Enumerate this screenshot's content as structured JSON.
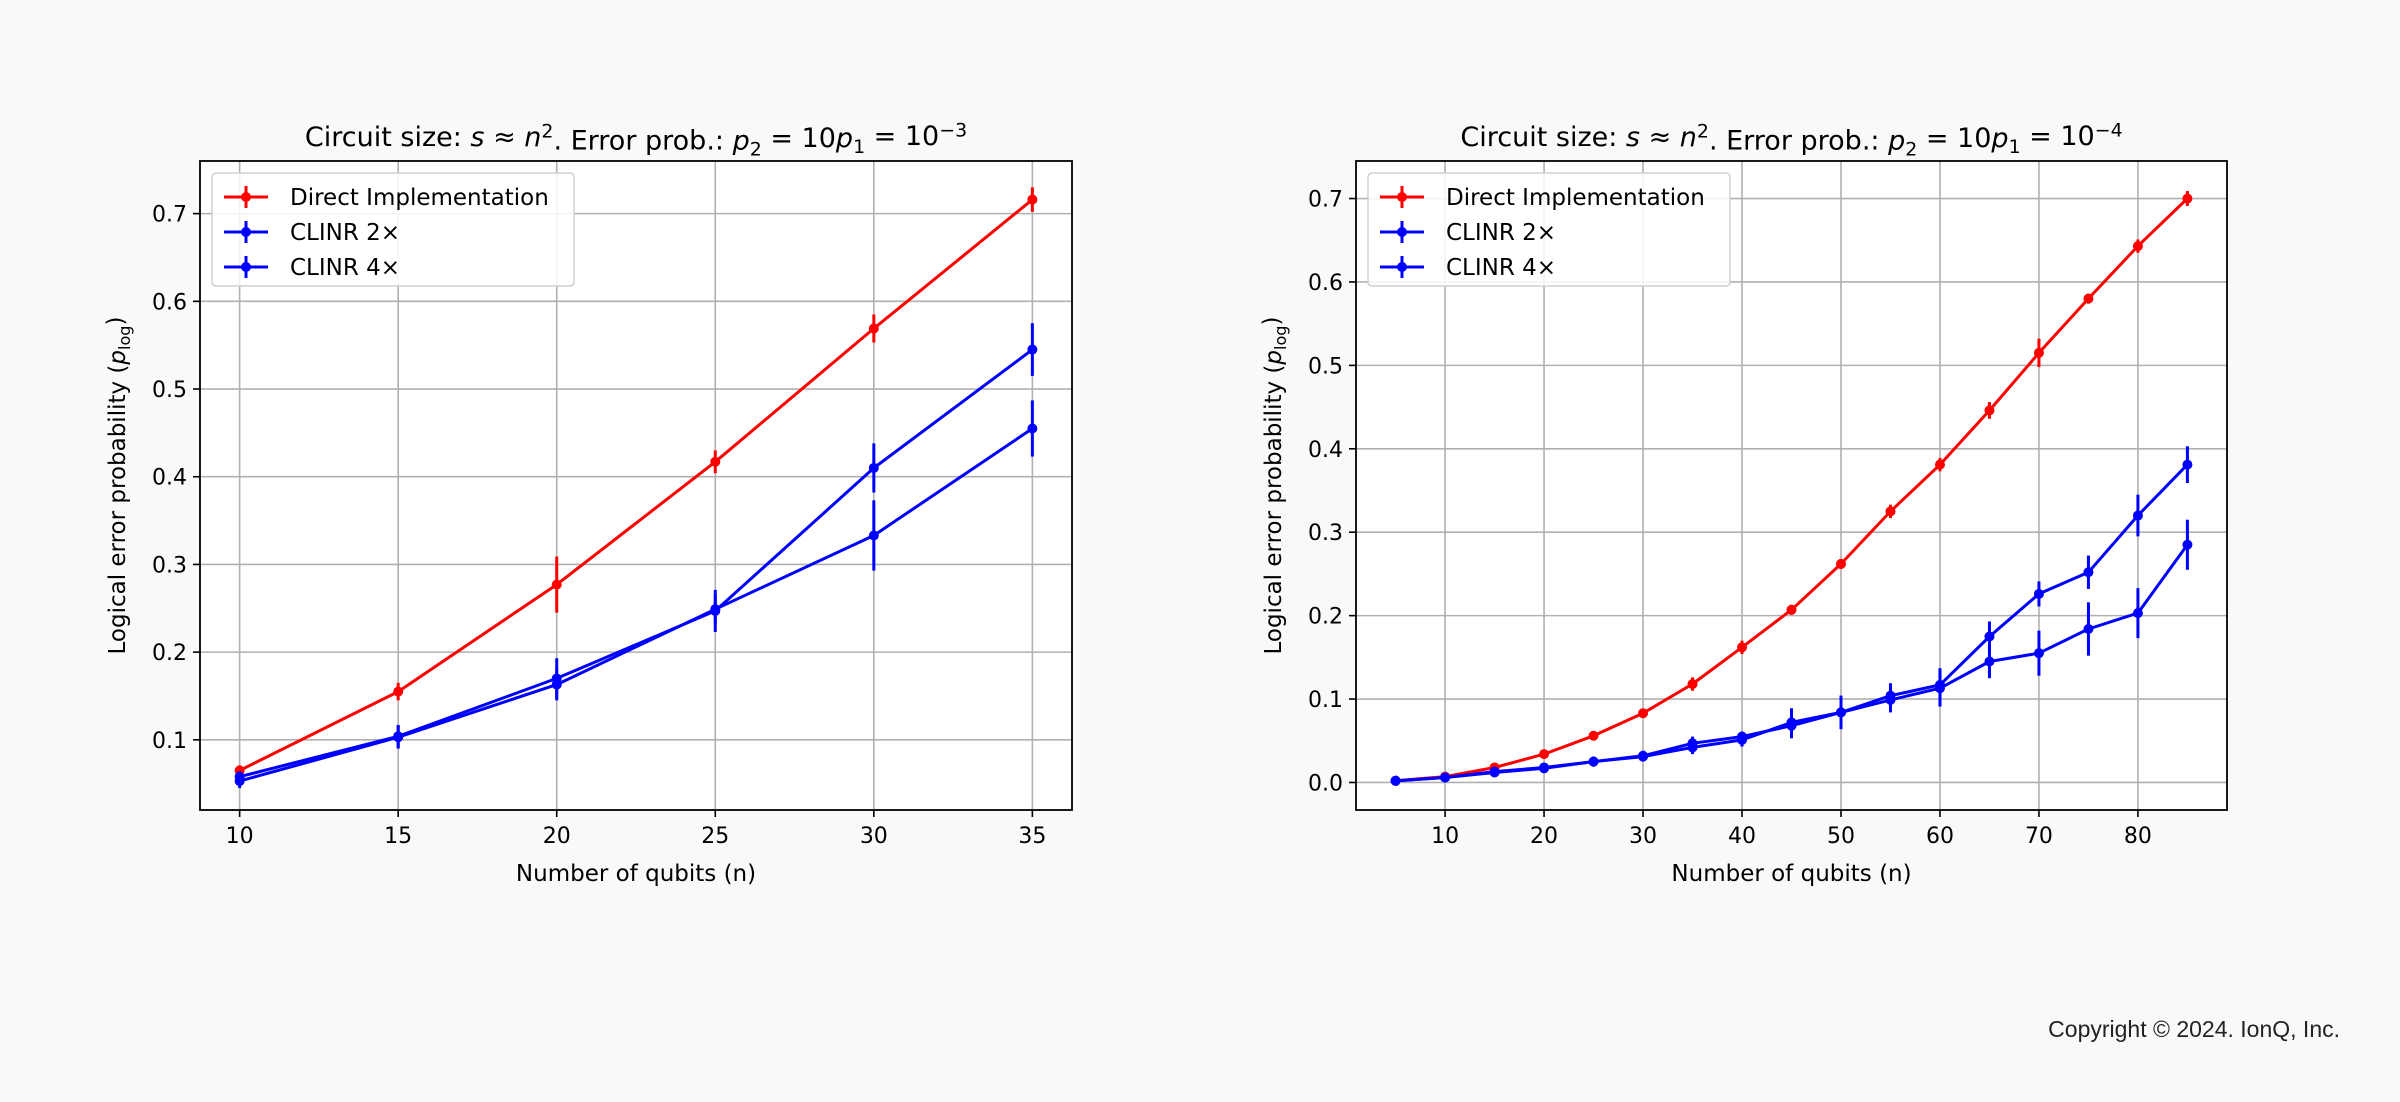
{
  "copyright": "Copyright © 2024. IonQ, Inc.",
  "chart_data": [
    {
      "type": "line",
      "title_parts": [
        {
          "t": "Circuit size: "
        },
        {
          "t": "s",
          "it": true
        },
        {
          "t": " ≈ "
        },
        {
          "t": "n",
          "it": true
        },
        {
          "t": "2",
          "sup": true
        },
        {
          "t": ".  Error prob.: "
        },
        {
          "t": "p",
          "it": true
        },
        {
          "t": "2",
          "sub": true
        },
        {
          "t": " = 10"
        },
        {
          "t": "p",
          "it": true
        },
        {
          "t": "1",
          "sub": true
        },
        {
          "t": " = 10"
        },
        {
          "t": "−3",
          "sup": true
        }
      ],
      "xlabel": "Number of qubits (n)",
      "ylabel_parts": [
        {
          "t": "Logical error probability ("
        },
        {
          "t": "p",
          "it": true
        },
        {
          "t": "log",
          "sub": true
        },
        {
          "t": ")"
        }
      ],
      "xlim": [
        8.75,
        36.25
      ],
      "ylim": [
        0.02,
        0.76
      ],
      "xticks": [
        10,
        15,
        20,
        25,
        30,
        35
      ],
      "yticks": [
        0.1,
        0.2,
        0.3,
        0.4,
        0.5,
        0.6,
        0.7
      ],
      "grid": true,
      "legend_position": "top-left",
      "x": [
        10,
        15,
        20,
        25,
        30,
        35
      ],
      "series": [
        {
          "name": "Direct Implementation",
          "color": "#ff0000",
          "values": [
            0.065,
            0.155,
            0.277,
            0.417,
            0.569,
            0.716
          ],
          "errors": [
            0.006,
            0.01,
            0.032,
            0.013,
            0.016,
            0.014
          ]
        },
        {
          "name": "CLINR 2×",
          "color": "#0000ff",
          "values": [
            0.058,
            0.104,
            0.17,
            0.247,
            0.41,
            0.545
          ],
          "errors": [
            0.006,
            0.013,
            0.023,
            0.024,
            0.028,
            0.03
          ]
        },
        {
          "name": "CLINR 4×",
          "color": "#0000ff",
          "values": [
            0.053,
            0.103,
            0.163,
            0.249,
            0.333,
            0.455
          ],
          "errors": [
            0.008,
            0.013,
            0.018,
            0.016,
            0.04,
            0.032
          ]
        }
      ]
    },
    {
      "type": "line",
      "title_parts": [
        {
          "t": "Circuit size: "
        },
        {
          "t": "s",
          "it": true
        },
        {
          "t": " ≈ "
        },
        {
          "t": "n",
          "it": true
        },
        {
          "t": "2",
          "sup": true
        },
        {
          "t": ".  Error prob.: "
        },
        {
          "t": "p",
          "it": true
        },
        {
          "t": "2",
          "sub": true
        },
        {
          "t": " = 10"
        },
        {
          "t": "p",
          "it": true
        },
        {
          "t": "1",
          "sub": true
        },
        {
          "t": " = 10"
        },
        {
          "t": "−4",
          "sup": true
        }
      ],
      "xlabel": "Number of qubits (n)",
      "ylabel_parts": [
        {
          "t": "Logical error probability ("
        },
        {
          "t": "p",
          "it": true
        },
        {
          "t": "log",
          "sub": true
        },
        {
          "t": ")"
        }
      ],
      "xlim": [
        1.0,
        89.0
      ],
      "ylim": [
        -0.033,
        0.745
      ],
      "xticks": [
        10,
        20,
        30,
        40,
        50,
        60,
        70,
        80
      ],
      "yticks": [
        0.0,
        0.1,
        0.2,
        0.3,
        0.4,
        0.5,
        0.6,
        0.7
      ],
      "grid": true,
      "legend_position": "top-left",
      "x": [
        5,
        10,
        15,
        20,
        25,
        30,
        35,
        40,
        45,
        50,
        55,
        60,
        65,
        70,
        75,
        80,
        85
      ],
      "series": [
        {
          "name": "Direct Implementation",
          "color": "#ff0000",
          "values": [
            0.002,
            0.007,
            0.018,
            0.034,
            0.056,
            0.083,
            0.118,
            0.162,
            0.207,
            0.262,
            0.325,
            0.381,
            0.446,
            0.515,
            0.58,
            0.643,
            0.7
          ],
          "errors": [
            0.001,
            0.002,
            0.003,
            0.004,
            0.005,
            0.005,
            0.008,
            0.008,
            0.006,
            0.006,
            0.008,
            0.008,
            0.01,
            0.017,
            0.006,
            0.008,
            0.009
          ]
        },
        {
          "name": "CLINR 2×",
          "color": "#0000ff",
          "values": [
            0.002,
            0.006,
            0.013,
            0.018,
            0.025,
            0.032,
            0.047,
            0.055,
            0.068,
            0.084,
            0.104,
            0.117,
            0.175,
            0.226,
            0.252,
            0.32,
            0.381
          ],
          "errors": [
            0.001,
            0.002,
            0.003,
            0.004,
            0.006,
            0.006,
            0.008,
            0.006,
            0.015,
            0.02,
            0.015,
            0.02,
            0.018,
            0.015,
            0.02,
            0.025,
            0.022
          ]
        },
        {
          "name": "CLINR 4×",
          "color": "#0000ff",
          "values": [
            0.002,
            0.006,
            0.012,
            0.017,
            0.025,
            0.031,
            0.042,
            0.051,
            0.072,
            0.084,
            0.099,
            0.113,
            0.145,
            0.155,
            0.184,
            0.203,
            0.285
          ],
          "errors": [
            0.001,
            0.002,
            0.003,
            0.004,
            0.006,
            0.006,
            0.008,
            0.008,
            0.017,
            0.02,
            0.015,
            0.022,
            0.02,
            0.027,
            0.032,
            0.03,
            0.03
          ]
        }
      ]
    }
  ]
}
